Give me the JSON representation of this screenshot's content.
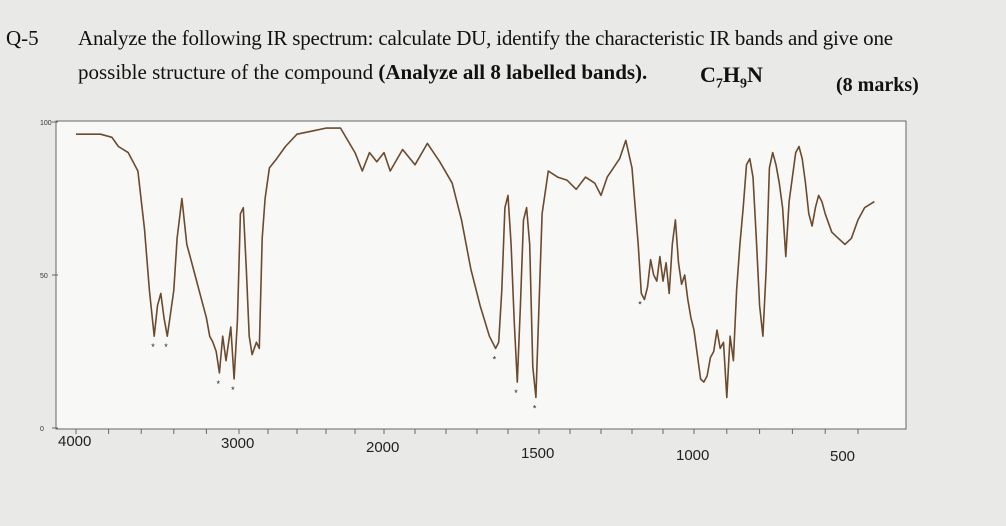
{
  "question": {
    "number": "Q-5",
    "line1": "Analyze the following IR spectrum: calculate DU, identify the characteristic IR bands and give one",
    "line2_plain": "possible structure of the compound",
    "line2_bold": "(Analyze all 8 labelled bands).",
    "formula": "C7H9N",
    "marks": "(8 marks)"
  },
  "chart_data": {
    "type": "line",
    "title": "",
    "xlabel": "",
    "ylabel": "",
    "x_axis": {
      "reversed": true,
      "tick_labels": [
        "4000",
        "3000",
        "2000",
        "1500",
        "1000",
        "500"
      ]
    },
    "y_axis": {
      "tick_labels": [
        "100",
        "50",
        "0"
      ],
      "ylim": [
        0,
        100
      ]
    },
    "grid": false,
    "series": [
      {
        "name": "",
        "color": "#6b4a2e",
        "points": [
          [
            4000,
            96
          ],
          [
            3850,
            96
          ],
          [
            3780,
            95
          ],
          [
            3740,
            92
          ],
          [
            3680,
            90
          ],
          [
            3620,
            84
          ],
          [
            3580,
            65
          ],
          [
            3550,
            45
          ],
          [
            3520,
            30
          ],
          [
            3500,
            40
          ],
          [
            3480,
            44
          ],
          [
            3460,
            36
          ],
          [
            3440,
            30
          ],
          [
            3400,
            45
          ],
          [
            3380,
            62
          ],
          [
            3350,
            75
          ],
          [
            3320,
            60
          ],
          [
            3300,
            56
          ],
          [
            3270,
            50
          ],
          [
            3240,
            44
          ],
          [
            3200,
            36
          ],
          [
            3180,
            30
          ],
          [
            3160,
            28
          ],
          [
            3140,
            25
          ],
          [
            3120,
            18
          ],
          [
            3100,
            30
          ],
          [
            3080,
            22
          ],
          [
            3050,
            33
          ],
          [
            3030,
            16
          ],
          [
            3010,
            35
          ],
          [
            2990,
            70
          ],
          [
            2970,
            72
          ],
          [
            2950,
            52
          ],
          [
            2930,
            30
          ],
          [
            2910,
            24
          ],
          [
            2880,
            28
          ],
          [
            2860,
            26
          ],
          [
            2840,
            62
          ],
          [
            2820,
            75
          ],
          [
            2790,
            85
          ],
          [
            2740,
            88
          ],
          [
            2680,
            92
          ],
          [
            2600,
            96
          ],
          [
            2500,
            97
          ],
          [
            2400,
            98
          ],
          [
            2300,
            98
          ],
          [
            2200,
            90
          ],
          [
            2150,
            84
          ],
          [
            2100,
            90
          ],
          [
            2050,
            87
          ],
          [
            2000,
            90
          ],
          [
            1980,
            84
          ],
          [
            1940,
            91
          ],
          [
            1900,
            86
          ],
          [
            1860,
            93
          ],
          [
            1820,
            87
          ],
          [
            1780,
            80
          ],
          [
            1750,
            68
          ],
          [
            1720,
            52
          ],
          [
            1690,
            40
          ],
          [
            1660,
            30
          ],
          [
            1640,
            26
          ],
          [
            1630,
            28
          ],
          [
            1620,
            45
          ],
          [
            1610,
            72
          ],
          [
            1600,
            76
          ],
          [
            1590,
            60
          ],
          [
            1580,
            35
          ],
          [
            1570,
            15
          ],
          [
            1560,
            40
          ],
          [
            1550,
            68
          ],
          [
            1540,
            72
          ],
          [
            1530,
            60
          ],
          [
            1520,
            20
          ],
          [
            1510,
            10
          ],
          [
            1500,
            40
          ],
          [
            1490,
            70
          ],
          [
            1470,
            84
          ],
          [
            1440,
            82
          ],
          [
            1410,
            81
          ],
          [
            1380,
            78
          ],
          [
            1350,
            82
          ],
          [
            1320,
            80
          ],
          [
            1300,
            76
          ],
          [
            1280,
            82
          ],
          [
            1260,
            85
          ],
          [
            1240,
            88
          ],
          [
            1220,
            94
          ],
          [
            1200,
            85
          ],
          [
            1180,
            60
          ],
          [
            1170,
            44
          ],
          [
            1160,
            42
          ],
          [
            1150,
            46
          ],
          [
            1140,
            55
          ],
          [
            1130,
            50
          ],
          [
            1120,
            48
          ],
          [
            1110,
            56
          ],
          [
            1100,
            48
          ],
          [
            1090,
            54
          ],
          [
            1080,
            44
          ],
          [
            1070,
            60
          ],
          [
            1060,
            68
          ],
          [
            1050,
            54
          ],
          [
            1040,
            47
          ],
          [
            1030,
            50
          ],
          [
            1020,
            42
          ],
          [
            1010,
            36
          ],
          [
            1000,
            32
          ],
          [
            990,
            24
          ],
          [
            980,
            16
          ],
          [
            970,
            15
          ],
          [
            960,
            17
          ],
          [
            950,
            23
          ],
          [
            940,
            25
          ],
          [
            930,
            32
          ],
          [
            920,
            26
          ],
          [
            910,
            28
          ],
          [
            900,
            10
          ],
          [
            890,
            30
          ],
          [
            880,
            22
          ],
          [
            870,
            45
          ],
          [
            860,
            60
          ],
          [
            850,
            72
          ],
          [
            840,
            86
          ],
          [
            830,
            88
          ],
          [
            820,
            82
          ],
          [
            810,
            62
          ],
          [
            800,
            40
          ],
          [
            790,
            30
          ],
          [
            780,
            52
          ],
          [
            770,
            85
          ],
          [
            760,
            90
          ],
          [
            750,
            86
          ],
          [
            740,
            80
          ],
          [
            730,
            72
          ],
          [
            720,
            56
          ],
          [
            710,
            74
          ],
          [
            700,
            82
          ],
          [
            690,
            90
          ],
          [
            680,
            92
          ],
          [
            670,
            88
          ],
          [
            660,
            80
          ],
          [
            650,
            70
          ],
          [
            640,
            66
          ],
          [
            630,
            72
          ],
          [
            620,
            76
          ],
          [
            610,
            74
          ],
          [
            600,
            70
          ],
          [
            580,
            64
          ],
          [
            560,
            62
          ],
          [
            540,
            60
          ],
          [
            520,
            62
          ],
          [
            500,
            68
          ],
          [
            480,
            72
          ],
          [
            450,
            74
          ]
        ]
      }
    ],
    "labelled_bands": [
      {
        "label": "*",
        "x": 3520,
        "y": 30
      },
      {
        "label": "*",
        "x": 3440,
        "y": 30
      },
      {
        "label": "*",
        "x": 3120,
        "y": 18
      },
      {
        "label": "*",
        "x": 3030,
        "y": 16
      },
      {
        "label": "*",
        "x": 1640,
        "y": 26
      },
      {
        "label": "*",
        "x": 1570,
        "y": 15
      },
      {
        "label": "*",
        "x": 1510,
        "y": 10
      },
      {
        "label": "*",
        "x": 1170,
        "y": 44
      }
    ]
  }
}
